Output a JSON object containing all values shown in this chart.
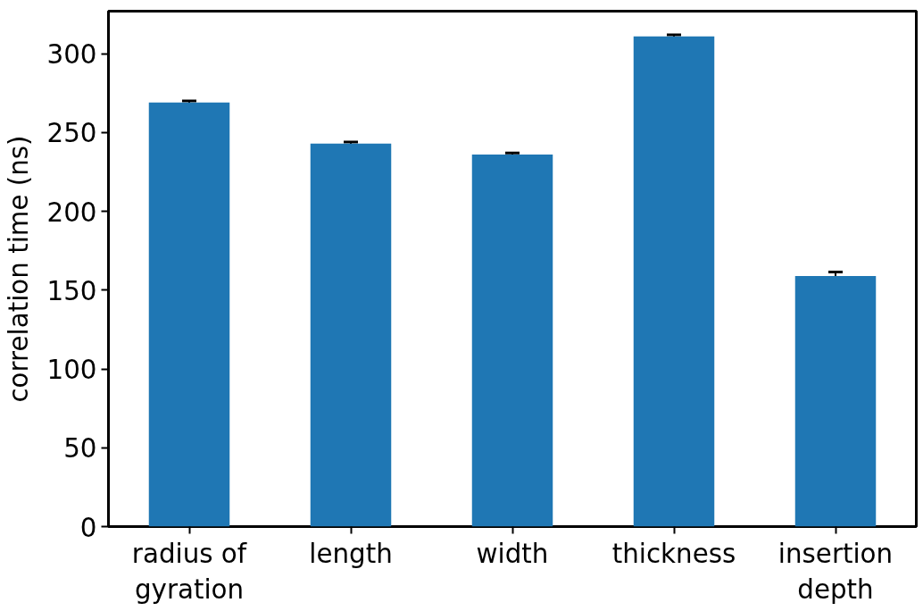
{
  "chart_data": {
    "type": "bar",
    "ylabel": "correlation time (ns)",
    "categories": [
      "radius of gyration",
      "length",
      "width",
      "thickness",
      "insertion depth"
    ],
    "values": [
      269,
      243,
      236,
      311,
      159
    ],
    "errors": [
      1,
      1,
      1,
      1,
      2.5
    ],
    "color": "#1f77b4",
    "ylim": [
      0,
      327
    ],
    "yticks": [
      0,
      50,
      100,
      150,
      200,
      250,
      300
    ],
    "grid": false
  }
}
